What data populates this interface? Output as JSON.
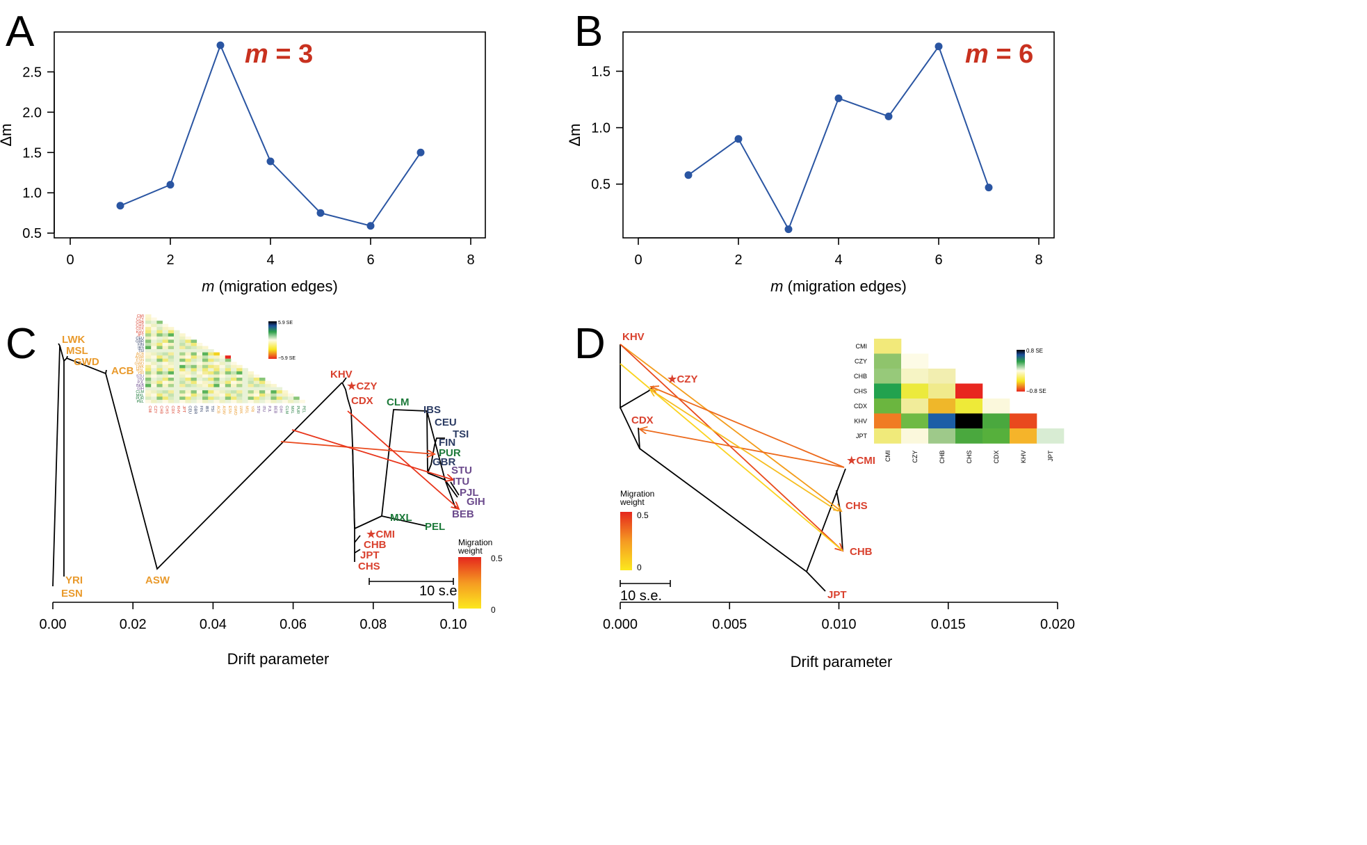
{
  "panels": {
    "a": "A",
    "b": "B",
    "c": "C",
    "d": "D"
  },
  "chart_data": [
    {
      "type": "line",
      "panel": "A",
      "annotation": "m = 3",
      "annotation_m": "m",
      "annotation_rest": " = 3",
      "xlabel": "m (migration edges)",
      "xlabel_m": "m",
      "xlabel_rest": " (migration edges)",
      "ylabel": "Δm",
      "xlim": [
        0,
        8
      ],
      "ylim": [
        0.45,
        2.9
      ],
      "x_ticks": [
        0,
        2,
        4,
        6,
        8
      ],
      "y_ticks": [
        0.5,
        1.0,
        1.5,
        2.0,
        2.5
      ],
      "x_tick_labels": [
        "0",
        "2",
        "4",
        "6",
        "8"
      ],
      "y_tick_labels": [
        "0.5",
        "1.0",
        "1.5",
        "2.0",
        "2.5"
      ],
      "color": "#2a55a2",
      "x": [
        1,
        2,
        3,
        4,
        5,
        6,
        7
      ],
      "y": [
        0.84,
        1.1,
        2.83,
        1.39,
        0.75,
        0.59,
        1.5
      ]
    },
    {
      "type": "line",
      "panel": "B",
      "annotation": "m = 6",
      "annotation_m": "m",
      "annotation_rest": " = 6",
      "xlabel": "m (migration edges)",
      "xlabel_m": "m",
      "xlabel_rest": " (migration edges)",
      "ylabel": "Δm",
      "xlim": [
        0,
        8
      ],
      "ylim": [
        0.03,
        1.78
      ],
      "x_ticks": [
        0,
        2,
        4,
        6,
        8
      ],
      "y_ticks": [
        0.5,
        1.0,
        1.5
      ],
      "x_tick_labels": [
        "0",
        "2",
        "4",
        "6",
        "8"
      ],
      "y_tick_labels": [
        "0.5",
        "1.0",
        "1.5"
      ],
      "color": "#2a55a2",
      "x": [
        1,
        2,
        3,
        4,
        5,
        6,
        7
      ],
      "y": [
        0.58,
        0.9,
        0.1,
        1.26,
        1.1,
        1.72,
        0.47
      ]
    },
    {
      "type": "tree",
      "panel": "C",
      "xlabel": "Drift parameter",
      "xlim": [
        0,
        0.1
      ],
      "x_ticks": [
        0,
        0.02,
        0.04,
        0.06,
        0.08,
        0.1
      ],
      "x_tick_labels": [
        "0.00",
        "0.02",
        "0.04",
        "0.06",
        "0.08",
        "0.10"
      ],
      "scale_bar": "10 s.e.",
      "legend_title": "Migration weight",
      "legend_ticks": [
        "0.5",
        "0"
      ],
      "residual_scale": [
        "5.9 SE",
        "−5.9 SE"
      ],
      "residual_pops": [
        "CMI",
        "CZY",
        "CHB",
        "CHS",
        "CDX",
        "KHV",
        "JPT",
        "CEU",
        "GBR",
        "FIN",
        "IBS",
        "TSI",
        "ACB",
        "ASW",
        "ESN",
        "GWD",
        "LWK",
        "MSL",
        "YRI",
        "STU",
        "ITU",
        "PJL",
        "BEB",
        "GIH",
        "CLM",
        "MXL",
        "PUR",
        "PEL"
      ],
      "leaves": [
        {
          "name": "LWK",
          "group": "africa"
        },
        {
          "name": "MSL",
          "group": "africa"
        },
        {
          "name": "GWD",
          "group": "africa"
        },
        {
          "name": "ACB",
          "group": "africa"
        },
        {
          "name": "YRI",
          "group": "africa"
        },
        {
          "name": "ESN",
          "group": "africa"
        },
        {
          "name": "ASW",
          "group": "africa"
        },
        {
          "name": "KHV",
          "group": "eastasia"
        },
        {
          "name": "★CZY",
          "group": "eastasia"
        },
        {
          "name": "CDX",
          "group": "eastasia"
        },
        {
          "name": "★CMI",
          "group": "eastasia"
        },
        {
          "name": "CHB",
          "group": "eastasia"
        },
        {
          "name": "JPT",
          "group": "eastasia"
        },
        {
          "name": "CHS",
          "group": "eastasia"
        },
        {
          "name": "CLM",
          "group": "america"
        },
        {
          "name": "MXL",
          "group": "america"
        },
        {
          "name": "PEL",
          "group": "america"
        },
        {
          "name": "PUR",
          "group": "america"
        },
        {
          "name": "IBS",
          "group": "europe"
        },
        {
          "name": "CEU",
          "group": "europe"
        },
        {
          "name": "TSI",
          "group": "europe"
        },
        {
          "name": "FIN",
          "group": "europe"
        },
        {
          "name": "GBR",
          "group": "europe"
        },
        {
          "name": "STU",
          "group": "southasia"
        },
        {
          "name": "ITU",
          "group": "southasia"
        },
        {
          "name": "PJL",
          "group": "southasia"
        },
        {
          "name": "GIH",
          "group": "southasia"
        },
        {
          "name": "BEB",
          "group": "southasia"
        }
      ],
      "colors": {
        "africa": "#e99a2c",
        "eastasia": "#d9412e",
        "america": "#1d7a3a",
        "europe": "#2b3b63",
        "southasia": "#6b4a8c"
      }
    },
    {
      "type": "tree",
      "panel": "D",
      "xlabel": "Drift parameter",
      "xlim": [
        0,
        0.02
      ],
      "x_ticks": [
        0,
        0.005,
        0.01,
        0.015,
        0.02
      ],
      "x_tick_labels": [
        "0.000",
        "0.005",
        "0.010",
        "0.015",
        "0.020"
      ],
      "scale_bar": "10 s.e.",
      "legend_title": "Migration weight",
      "legend_ticks": [
        "0.5",
        "0"
      ],
      "residual_scale": [
        "0.8 SE",
        "−0.8 SE"
      ],
      "leaves": [
        "KHV",
        "★CZY",
        "CDX",
        "★CMI",
        "CHS",
        "CHB",
        "JPT"
      ],
      "heatmap": {
        "rows": [
          "CMI",
          "CZY",
          "CHB",
          "CHS",
          "CDX",
          "KHV",
          "JPT"
        ],
        "cols": [
          "CMI",
          "CZY",
          "CHB",
          "CHS",
          "CDX",
          "KHV",
          "JPT"
        ],
        "cells": [
          [
            "#f2e97a"
          ],
          [
            "#8fc46c",
            "#fdfbe6"
          ],
          [
            "#97c97a",
            "#f6f4c4",
            "#f2eeb0"
          ],
          [
            "#22a24e",
            "#ecea3c",
            "#f0ea8c",
            "#e8271f"
          ],
          [
            "#6bb63f",
            "#f1ec9a",
            "#efb72a",
            "#eeea38",
            "#fbf8dc"
          ],
          [
            "#f07c23",
            "#6fba44",
            "#1c5ea6",
            "#000000",
            "#4aa83e",
            "#e9491e"
          ],
          [
            "#f0ea7a",
            "#fbf8dc",
            "#9ec98a",
            "#4aa83e",
            "#56b03c",
            "#f5b42a",
            "#d8ecd3"
          ]
        ]
      }
    }
  ]
}
